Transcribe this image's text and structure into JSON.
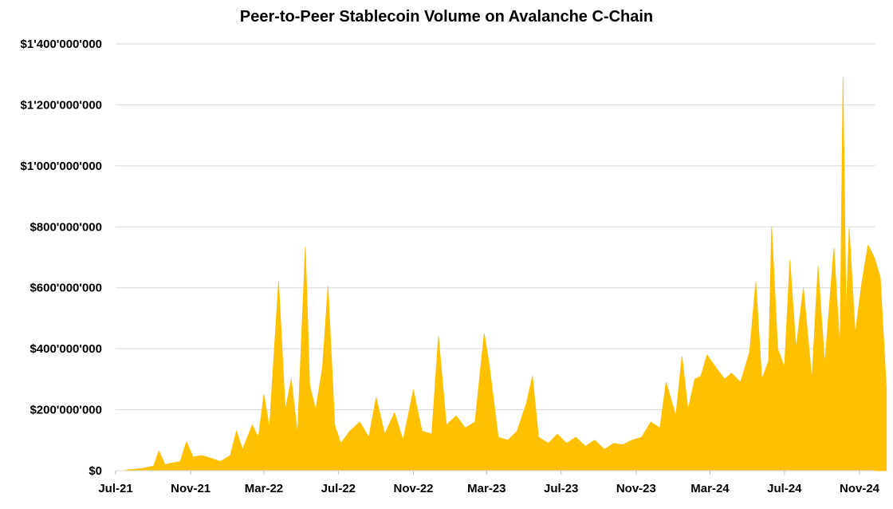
{
  "chart_data": {
    "type": "area",
    "title": "Peer-to-Peer Stablecoin Volume on Avalanche C-Chain",
    "xlabel": "",
    "ylabel": "",
    "x_range": [
      "2021-07-01",
      "2024-12-15"
    ],
    "ylim": [
      0,
      1400000000
    ],
    "y_ticks": [
      0,
      200000000,
      400000000,
      600000000,
      800000000,
      1000000000,
      1200000000,
      1400000000
    ],
    "y_tick_labels": [
      "$0",
      "$200'000'000",
      "$400'000'000",
      "$600'000'000",
      "$800'000'000",
      "$1'000'000'000",
      "$1'200'000'000",
      "$1'400'000'000"
    ],
    "x_ticks": [
      "2021-07-01",
      "2021-11-01",
      "2022-03-01",
      "2022-07-01",
      "2022-11-01",
      "2023-03-01",
      "2023-07-01",
      "2023-11-01",
      "2024-03-01",
      "2024-07-01",
      "2024-11-01"
    ],
    "x_tick_labels": [
      "Jul-21",
      "Nov-21",
      "Mar-22",
      "Jul-22",
      "Nov-22",
      "Mar-23",
      "Jul-23",
      "Nov-23",
      "Mar-24",
      "Jul-24",
      "Nov-24"
    ],
    "grid": true,
    "color": "#FFC000",
    "series": [
      {
        "name": "",
        "points": [
          [
            "2021-07-15",
            0
          ],
          [
            "2021-07-20",
            3000000
          ],
          [
            "2021-08-01",
            5000000
          ],
          [
            "2021-08-15",
            8000000
          ],
          [
            "2021-09-01",
            15000000
          ],
          [
            "2021-09-10",
            65000000
          ],
          [
            "2021-09-20",
            20000000
          ],
          [
            "2021-10-01",
            25000000
          ],
          [
            "2021-10-15",
            30000000
          ],
          [
            "2021-10-25",
            95000000
          ],
          [
            "2021-11-05",
            45000000
          ],
          [
            "2021-11-20",
            50000000
          ],
          [
            "2021-12-05",
            40000000
          ],
          [
            "2021-12-20",
            30000000
          ],
          [
            "2022-01-05",
            50000000
          ],
          [
            "2022-01-15",
            130000000
          ],
          [
            "2022-01-25",
            70000000
          ],
          [
            "2022-02-10",
            150000000
          ],
          [
            "2022-02-20",
            110000000
          ],
          [
            "2022-03-01",
            250000000
          ],
          [
            "2022-03-10",
            140000000
          ],
          [
            "2022-03-25",
            620000000
          ],
          [
            "2022-04-05",
            200000000
          ],
          [
            "2022-04-15",
            300000000
          ],
          [
            "2022-04-25",
            120000000
          ],
          [
            "2022-05-08",
            735000000
          ],
          [
            "2022-05-15",
            280000000
          ],
          [
            "2022-05-25",
            200000000
          ],
          [
            "2022-06-05",
            340000000
          ],
          [
            "2022-06-14",
            605000000
          ],
          [
            "2022-06-25",
            150000000
          ],
          [
            "2022-07-05",
            90000000
          ],
          [
            "2022-07-20",
            130000000
          ],
          [
            "2022-08-05",
            160000000
          ],
          [
            "2022-08-20",
            110000000
          ],
          [
            "2022-09-01",
            240000000
          ],
          [
            "2022-09-15",
            120000000
          ],
          [
            "2022-10-01",
            190000000
          ],
          [
            "2022-10-15",
            100000000
          ],
          [
            "2022-11-01",
            265000000
          ],
          [
            "2022-11-15",
            130000000
          ],
          [
            "2022-12-01",
            120000000
          ],
          [
            "2022-12-12",
            440000000
          ],
          [
            "2022-12-25",
            150000000
          ],
          [
            "2023-01-10",
            180000000
          ],
          [
            "2023-01-25",
            140000000
          ],
          [
            "2023-02-10",
            160000000
          ],
          [
            "2023-02-25",
            450000000
          ],
          [
            "2023-03-05",
            350000000
          ],
          [
            "2023-03-20",
            110000000
          ],
          [
            "2023-04-05",
            100000000
          ],
          [
            "2023-04-20",
            130000000
          ],
          [
            "2023-05-05",
            220000000
          ],
          [
            "2023-05-15",
            310000000
          ],
          [
            "2023-05-25",
            110000000
          ],
          [
            "2023-06-10",
            90000000
          ],
          [
            "2023-06-25",
            120000000
          ],
          [
            "2023-07-10",
            90000000
          ],
          [
            "2023-07-25",
            110000000
          ],
          [
            "2023-08-10",
            80000000
          ],
          [
            "2023-08-25",
            100000000
          ],
          [
            "2023-09-10",
            70000000
          ],
          [
            "2023-09-25",
            90000000
          ],
          [
            "2023-10-10",
            85000000
          ],
          [
            "2023-10-25",
            100000000
          ],
          [
            "2023-11-10",
            110000000
          ],
          [
            "2023-11-25",
            160000000
          ],
          [
            "2023-12-10",
            140000000
          ],
          [
            "2023-12-20",
            290000000
          ],
          [
            "2024-01-05",
            180000000
          ],
          [
            "2024-01-15",
            375000000
          ],
          [
            "2024-01-25",
            200000000
          ],
          [
            "2024-02-05",
            300000000
          ],
          [
            "2024-02-15",
            310000000
          ],
          [
            "2024-02-25",
            380000000
          ],
          [
            "2024-03-10",
            340000000
          ],
          [
            "2024-03-25",
            300000000
          ],
          [
            "2024-04-05",
            320000000
          ],
          [
            "2024-04-20",
            290000000
          ],
          [
            "2024-05-05",
            390000000
          ],
          [
            "2024-05-15",
            620000000
          ],
          [
            "2024-05-25",
            300000000
          ],
          [
            "2024-06-05",
            360000000
          ],
          [
            "2024-06-10",
            800000000
          ],
          [
            "2024-06-20",
            400000000
          ],
          [
            "2024-07-01",
            340000000
          ],
          [
            "2024-07-10",
            690000000
          ],
          [
            "2024-07-20",
            400000000
          ],
          [
            "2024-08-01",
            600000000
          ],
          [
            "2024-08-15",
            300000000
          ],
          [
            "2024-08-25",
            670000000
          ],
          [
            "2024-09-05",
            350000000
          ],
          [
            "2024-09-20",
            730000000
          ],
          [
            "2024-09-30",
            400000000
          ],
          [
            "2024-10-05",
            1290000000
          ],
          [
            "2024-10-10",
            500000000
          ],
          [
            "2024-10-15",
            795000000
          ],
          [
            "2024-10-25",
            450000000
          ],
          [
            "2024-11-05",
            620000000
          ],
          [
            "2024-11-15",
            740000000
          ],
          [
            "2024-11-25",
            700000000
          ],
          [
            "2024-12-05",
            635000000
          ],
          [
            "2024-12-15",
            270000000
          ]
        ]
      }
    ]
  }
}
